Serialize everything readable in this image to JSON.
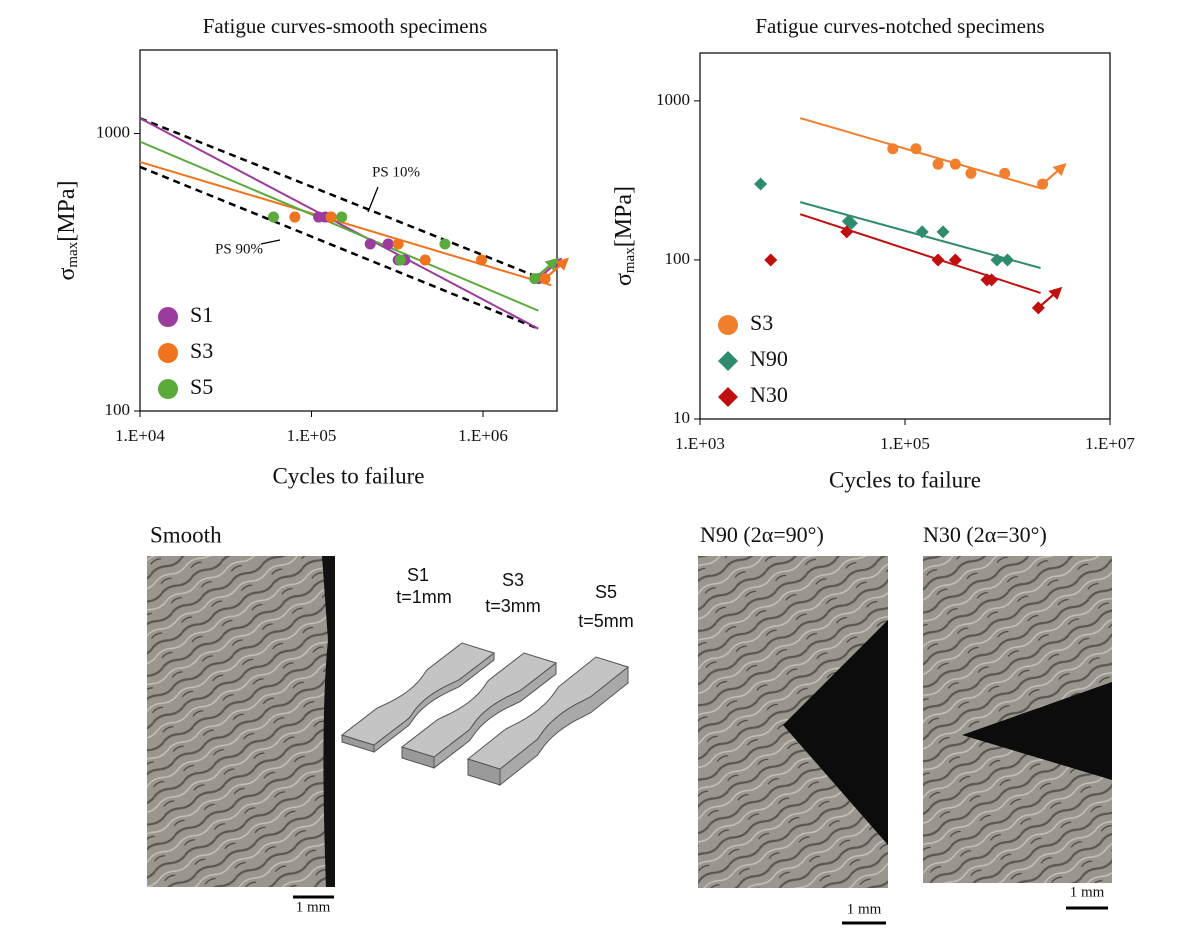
{
  "chart_data": [
    {
      "type": "scatter",
      "title": "Fatigue curves-smooth specimens",
      "xlabel": "Cycles to failure",
      "ylabel": {
        "symbol": "σ",
        "subscript": "max",
        "unit": "[MPa]"
      },
      "xscale": "log",
      "yscale": "log",
      "xlim": [
        10000,
        2700000
      ],
      "ylim": [
        100,
        2000
      ],
      "xticks": [
        {
          "value": 10000,
          "label": "1.E+04"
        },
        {
          "value": 100000,
          "label": "1.E+05"
        },
        {
          "value": 1000000,
          "label": "1.E+06"
        }
      ],
      "yticks": [
        100,
        1000
      ],
      "legend": "lower left",
      "series": [
        {
          "name": "S1",
          "color": "#9b3b9e",
          "marker": "circle",
          "runout": true,
          "x": [
            110000,
            120000,
            130000,
            220000,
            280000,
            320000,
            350000,
            2100000
          ],
          "values": [
            500,
            500,
            500,
            400,
            400,
            350,
            350,
            300
          ],
          "fit": {
            "x": [
              10000,
              2100000
            ],
            "values": [
              1135,
              198
            ]
          }
        },
        {
          "name": "S3",
          "color": "#f0731e",
          "marker": "circle",
          "runout": true,
          "x": [
            80000,
            130000,
            320000,
            460000,
            980000,
            2300000
          ],
          "values": [
            500,
            500,
            400,
            350,
            350,
            300
          ],
          "fit": {
            "x": [
              10000,
              2500000
            ],
            "values": [
              790,
              284
            ]
          }
        },
        {
          "name": "S5",
          "color": "#5aab3c",
          "marker": "circle",
          "runout": true,
          "x": [
            60000,
            150000,
            330000,
            600000,
            2000000
          ],
          "values": [
            500,
            500,
            350,
            400,
            300
          ],
          "fit": {
            "x": [
              10000,
              2100000
            ],
            "values": [
              935,
              230
            ]
          }
        }
      ],
      "bounds": [
        {
          "label": "PS 10%",
          "x": [
            10000,
            2200000
          ],
          "values": [
            1135,
            300
          ]
        },
        {
          "label": "PS 90%",
          "x": [
            10000,
            2100000
          ],
          "values": [
            758,
            198
          ]
        }
      ]
    },
    {
      "type": "scatter",
      "title": "Fatigue curves-notched specimens",
      "xlabel": "Cycles to failure",
      "ylabel": {
        "symbol": "σ",
        "subscript": "max",
        "unit": "[MPa]"
      },
      "xscale": "log",
      "yscale": "log",
      "xlim": [
        1000,
        10000000
      ],
      "ylim": [
        10,
        2000
      ],
      "xticks": [
        {
          "value": 1000,
          "label": "1.E+03"
        },
        {
          "value": 100000,
          "label": "1.E+05"
        },
        {
          "value": 10000000,
          "label": "1.E+07"
        }
      ],
      "yticks": [
        10,
        100,
        1000
      ],
      "legend": "lower left",
      "series": [
        {
          "name": "S3",
          "color": "#f07f2e",
          "marker": "circle",
          "runout": true,
          "x": [
            76000,
            128000,
            210000,
            310000,
            440000,
            940000,
            2200000
          ],
          "values": [
            500,
            500,
            400,
            400,
            350,
            350,
            300
          ],
          "fit": {
            "x": [
              9500,
              2200000
            ],
            "values": [
              780,
              280
            ]
          }
        },
        {
          "name": "N90",
          "color": "#2e8b6e",
          "marker": "diamond",
          "runout": false,
          "x": [
            3900,
            28000,
            30000,
            147000,
            235000,
            790000,
            1000000
          ],
          "values": [
            300,
            175,
            170,
            150,
            150,
            100,
            100
          ],
          "fit": {
            "x": [
              9500,
              2100000
            ],
            "values": [
              231,
              89
            ]
          }
        },
        {
          "name": "N30",
          "color": "#c00f0f",
          "marker": "diamond",
          "runout": true,
          "x": [
            4900,
            27000,
            210000,
            310000,
            630000,
            700000,
            2000000
          ],
          "values": [
            100,
            150,
            100,
            100,
            75,
            75,
            50
          ],
          "fit": {
            "x": [
              9500,
              2100000
            ],
            "values": [
              194,
              62
            ]
          }
        }
      ]
    }
  ],
  "panels": {
    "smooth": {
      "label": "Smooth",
      "scale": "1 mm"
    },
    "specimens": [
      {
        "name": "S1",
        "thickness": "t=1mm"
      },
      {
        "name": "S3",
        "thickness": "t=3mm"
      },
      {
        "name": "S5",
        "thickness": "t=5mm"
      }
    ],
    "n90": {
      "label": "N90 (2α=90°)",
      "scale": "1 mm"
    },
    "n30": {
      "label": "N30 (2α=30°)",
      "scale": "1 mm"
    }
  }
}
